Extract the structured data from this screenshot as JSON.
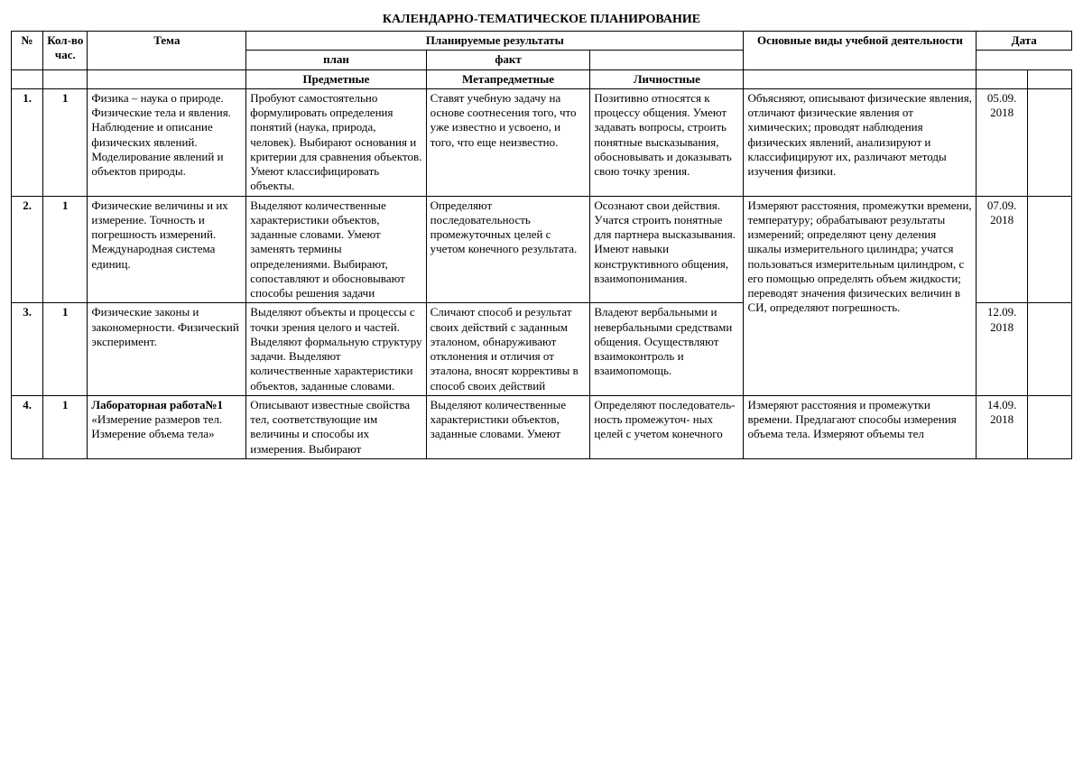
{
  "title": "КАЛЕНДАРНО-ТЕМАТИЧЕСКОЕ ПЛАНИРОВАНИЕ",
  "headers": {
    "num": "№",
    "hours": "Кол-во час.",
    "tema": "Тема",
    "planned_results": "Планируемые результаты",
    "activities": "Основные виды учебной деятельности",
    "date": "Дата",
    "predmet": "Предметные",
    "metapredmet": "Метапредметные",
    "lichnost": "Личностные",
    "plan": "план",
    "fakt": "факт"
  },
  "rows": [
    {
      "num": "1.",
      "hours": "1",
      "tema": "Физика – наука о природе.  Физические тела и явления. Наблюдение и описание физических явлений. Моделирование явлений и объектов природы.",
      "predmet": "Пробуют самостоятельно формулировать определения понятий (наука, природа, человек). Выбирают основания и критерии для сравнения объектов. Умеют классифицировать объекты.",
      "meta": "Ставят учебную задачу на основе соотнесения того, что уже известно и усвоено, и того, что еще неизвестно.",
      "lich": "Позитивно относятся к процессу общения. Умеют задавать вопросы, строить понятные высказывания, обосновывать и доказывать свою точку зрения.",
      "act": "Объясняют, описывают физические явления, отличают физические явления от химических; проводят наблюдения физических явлений, анализируют и классифицируют их, различают методы изучения физики.",
      "plan": "05.09. 2018",
      "fakt": ""
    },
    {
      "num": "2.",
      "hours": "1",
      "tema": "Физические величины и их измерение. Точность и погрешность измерений. Международная система единиц.",
      "predmet": "Выделяют количественные характеристики объектов, заданные словами. Умеют заменять термины определениями. Выбирают, сопоставляют и обосновывают способы решения задачи",
      "meta": "Определяют последовательность промежуточных целей с учетом конечного результата.",
      "lich": "Осознают свои действия. Учатся строить понятные для партнера высказывания. Имеют навыки конструктивного общения, взаимопонимания.",
      "act": "Измеряют  расстояния, промежутки времени, температуру;  обрабатывают результаты измерений; определяют цену деления шкалы измерительного цилиндра; учатся пользоваться измерительным цилиндром, с его помощью определять объем жидкости; переводят значения физических величин в СИ, определяют погрешность.",
      "plan": "07.09. 2018",
      "fakt": ""
    },
    {
      "num": "3.",
      "hours": "1",
      "tema": "Физические законы и закономерности. Физический эксперимент.",
      "predmet": "Выделяют объекты и процессы с точки зрения целого и частей. Выделяют формальную структуру задачи. Выделяют количественные характеристики объектов, заданные словами.",
      "meta": "Сличают способ и результат своих действий с заданным эталоном, обнаруживают отклонения и отличия от эталона, вносят коррективы в способ своих действий",
      "lich": "Владеют вербальными и невербальными средствами общения. Осуществляют взаимоконтроль и взаимопомощь.",
      "plan": "12.09. 2018",
      "fakt": ""
    },
    {
      "num": "4.",
      "hours": "1",
      "tema_bold": "Лабораторная работа№1",
      "tema_rest": " «Измерение размеров тел. Измерение объема тела»",
      "predmet": "Описывают известные свойства тел, соответствующие им величины и способы их измерения. Выбирают",
      "meta": "Выделяют количественные характеристики объектов, заданные словами. Умеют",
      "lich": "Определяют последователь-ность промежуточ- ных целей с учетом конечного",
      "act": "Измеряют расстояния и промежутки времени. Предлагают способы измерения объема тела. Измеряют объемы тел",
      "plan": "14.09. 2018",
      "fakt": ""
    }
  ]
}
